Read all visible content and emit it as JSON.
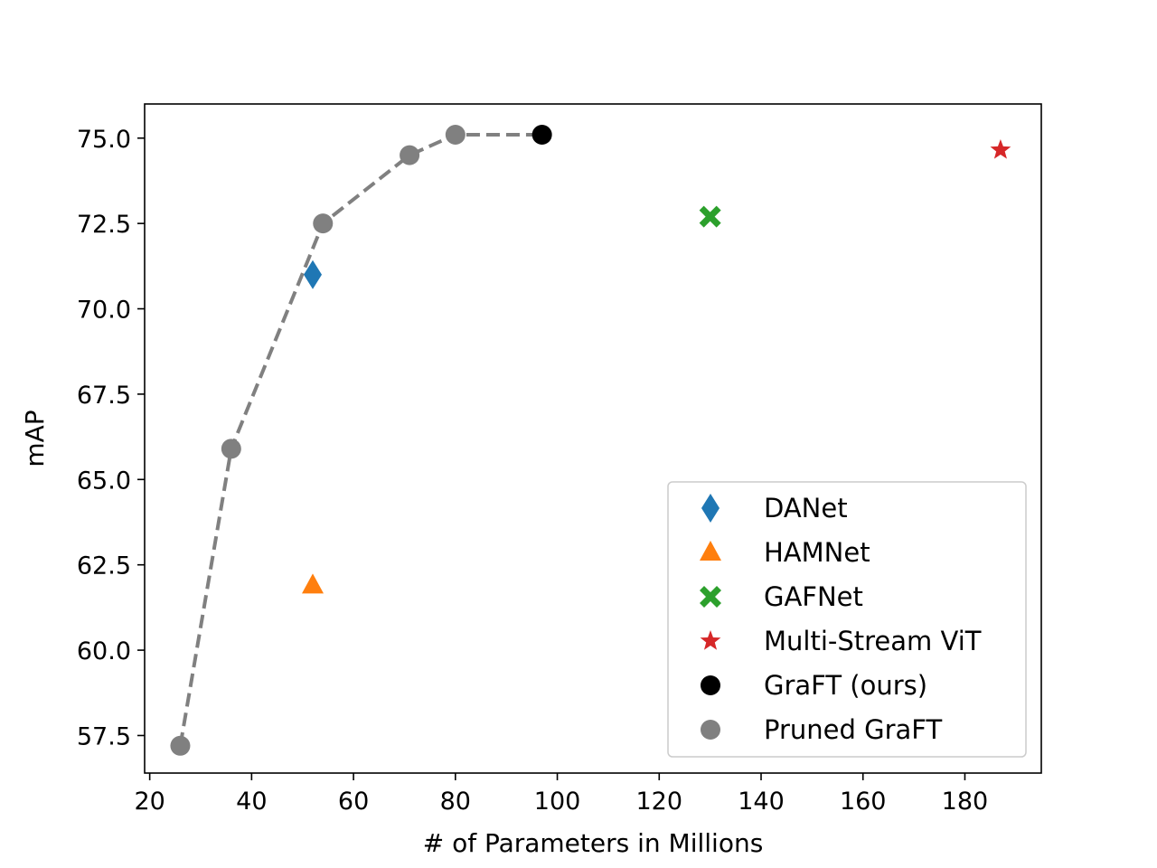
{
  "chart_data": {
    "type": "scatter",
    "title": "",
    "xlabel": "# of Parameters in Millions",
    "ylabel": "mAP",
    "xlim": [
      19,
      195
    ],
    "ylim": [
      56.4,
      76.0
    ],
    "xticks": [
      20,
      40,
      60,
      80,
      100,
      120,
      140,
      160,
      180
    ],
    "yticks": [
      57.5,
      60.0,
      62.5,
      65.0,
      67.5,
      70.0,
      72.5,
      75.0
    ],
    "xtick_labels": [
      "20",
      "40",
      "60",
      "80",
      "100",
      "120",
      "140",
      "160",
      "180"
    ],
    "ytick_labels": [
      "57.5",
      "60.0",
      "62.5",
      "65.0",
      "67.5",
      "70.0",
      "72.5",
      "75.0"
    ],
    "grid": false,
    "legend_position": "lower right",
    "series": [
      {
        "name": "DANet",
        "marker": "diamond",
        "color": "#1f77b4",
        "x": [
          52
        ],
        "y": [
          71.0
        ]
      },
      {
        "name": "HAMNet",
        "marker": "triangle",
        "color": "#ff7f0e",
        "x": [
          52
        ],
        "y": [
          61.9
        ]
      },
      {
        "name": "GAFNet",
        "marker": "x",
        "color": "#2ca02c",
        "x": [
          130
        ],
        "y": [
          72.7
        ]
      },
      {
        "name": "Multi-Stream ViT",
        "marker": "star",
        "color": "#d62728",
        "x": [
          187
        ],
        "y": [
          74.65
        ]
      },
      {
        "name": "GraFT (ours)",
        "marker": "circle",
        "color": "#000000",
        "x": [
          97
        ],
        "y": [
          75.1
        ]
      },
      {
        "name": "Pruned GraFT",
        "marker": "circle",
        "color": "#808080",
        "x": [
          26,
          36,
          54,
          71,
          80
        ],
        "y": [
          57.2,
          65.9,
          72.5,
          74.5,
          75.1
        ]
      }
    ],
    "trend_line": {
      "style": "dashed",
      "color": "#808080",
      "x": [
        26,
        36,
        54,
        71,
        80,
        97
      ],
      "y": [
        57.2,
        65.9,
        72.5,
        74.5,
        75.1,
        75.1
      ]
    }
  }
}
